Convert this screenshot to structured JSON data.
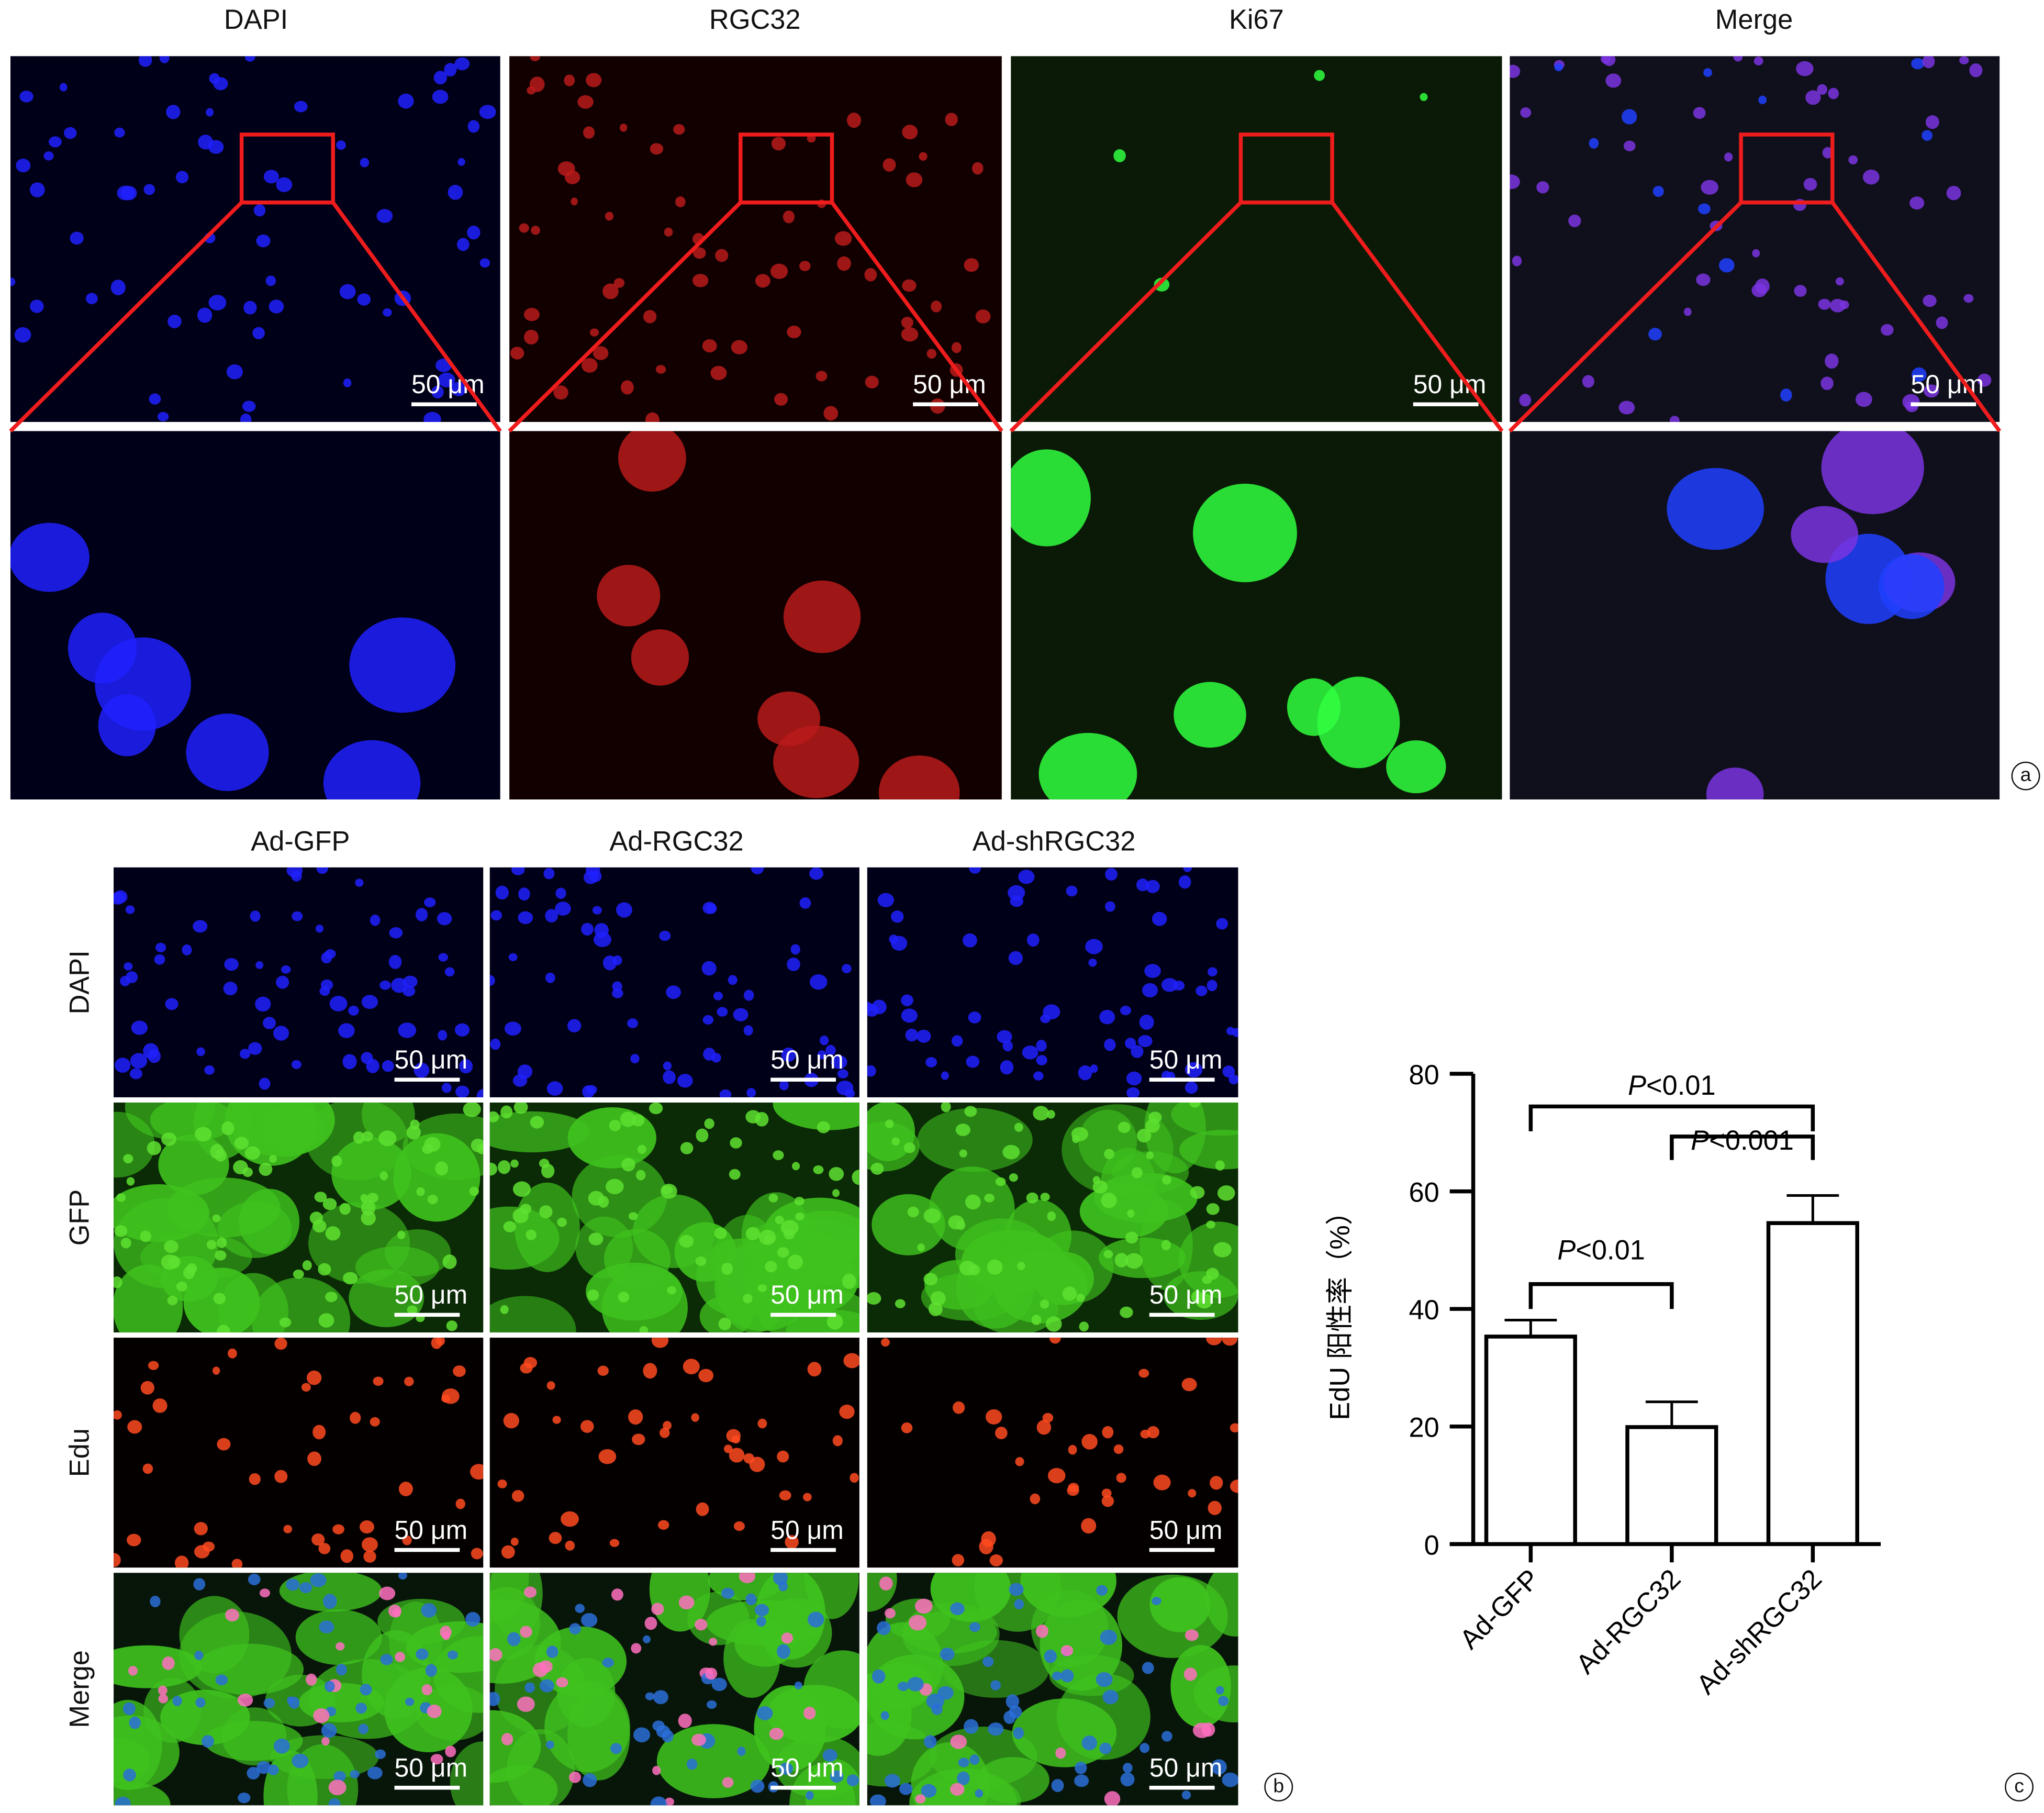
{
  "panel_a": {
    "columns": [
      "DAPI",
      "RGC32",
      "Ki67",
      "Merge"
    ],
    "scale_bar": "50 μm",
    "panel_letter": "a",
    "colors": {
      "DAPI": "#1a1aff",
      "RGC32": "#e01818",
      "Ki67": "#22dd22",
      "Merge": "#8a3ad8",
      "zoom_box": "#ee1c1c"
    }
  },
  "panel_b": {
    "columns": [
      "Ad-GFP",
      "Ad-RGC32",
      "Ad-shRGC32"
    ],
    "rows": [
      "DAPI",
      "GFP",
      "Edu",
      "Merge"
    ],
    "scale_bar": "50 μm",
    "panel_letter": "b"
  },
  "panel_c": {
    "panel_letter": "c"
  },
  "chart_data": {
    "type": "bar",
    "categories": [
      "Ad-GFP",
      "Ad-RGC32",
      "Ad-shRGC32"
    ],
    "values": [
      35.3,
      19.9,
      54.6
    ],
    "error_upper": [
      38.1,
      24.2,
      59.3
    ],
    "ylabel": "EdU 阳性率（%）",
    "xlabel": "",
    "ylim": [
      0,
      80
    ],
    "yticks": [
      "0",
      "20",
      "40",
      "60",
      "80"
    ],
    "grid": false,
    "significance": [
      {
        "from": "Ad-GFP",
        "to": "Ad-RGC32",
        "label_italic": "P",
        "label_rest": "<0.01"
      },
      {
        "from": "Ad-RGC32",
        "to": "Ad-shRGC32",
        "label_italic": "P",
        "label_rest": "<0.001"
      },
      {
        "from": "Ad-GFP",
        "to": "Ad-shRGC32",
        "label_italic": "P",
        "label_rest": "<0.01"
      }
    ]
  }
}
